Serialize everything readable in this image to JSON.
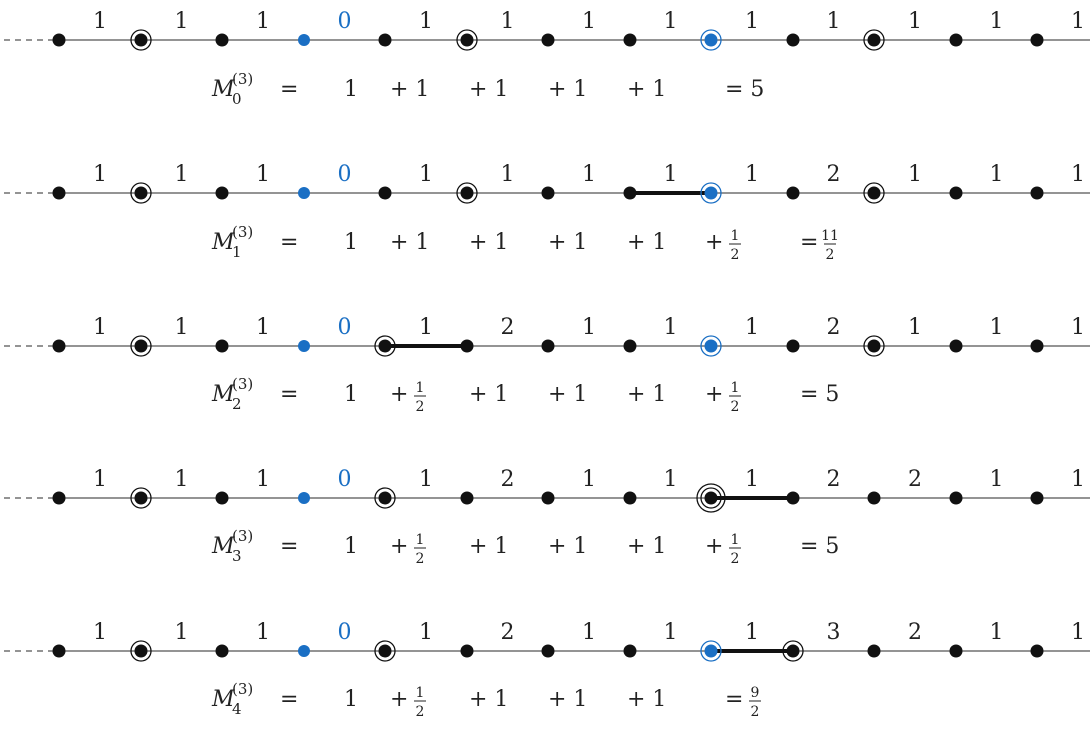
{
  "colors": {
    "blue": "#1a6fc4",
    "black": "#111111",
    "line": "#555555"
  },
  "rows": [
    {
      "labels": [
        "1",
        "1",
        "1",
        "0",
        "1",
        "1",
        "1",
        "1",
        "1",
        "1",
        "1",
        "1",
        "1"
      ],
      "circled": [
        1,
        5,
        8,
        10
      ],
      "thick": [],
      "blue_circled": [
        8
      ],
      "equation": {
        "var": "M",
        "sup": "(3)",
        "sub": "0",
        "terms": [
          "1",
          "+ 1",
          "+ 1",
          "+ 1",
          "+ 1"
        ],
        "result": "= 5"
      }
    },
    {
      "labels": [
        "1",
        "1",
        "1",
        "0",
        "1",
        "1",
        "1",
        "1",
        "1",
        "2",
        "1",
        "1",
        "1"
      ],
      "circled": [
        1,
        5,
        10
      ],
      "thick": [
        [
          7,
          8
        ]
      ],
      "blue_circled": [
        8
      ],
      "equation": {
        "var": "M",
        "sup": "(3)",
        "sub": "1",
        "terms": [
          "1",
          "+ 1",
          "+ 1",
          "+ 1",
          "+ 1",
          "+ 1/2"
        ],
        "result": "= 11/2"
      }
    },
    {
      "labels": [
        "1",
        "1",
        "1",
        "0",
        "1",
        "2",
        "1",
        "1",
        "1",
        "2",
        "1",
        "1",
        "1"
      ],
      "circled": [
        1,
        4,
        10
      ],
      "thick": [
        [
          4,
          5
        ]
      ],
      "blue_circled": [
        8
      ],
      "equation": {
        "var": "M",
        "sup": "(3)",
        "sub": "2",
        "terms": [
          "1",
          "+ 1/2",
          "+ 1",
          "+ 1",
          "+ 1",
          "+ 1/2"
        ],
        "result": "= 5"
      }
    },
    {
      "labels": [
        "1",
        "1",
        "1",
        "0",
        "1",
        "2",
        "1",
        "1",
        "1",
        "2",
        "2",
        "1",
        "1"
      ],
      "circled": [
        1,
        4
      ],
      "double_circled": [
        8
      ],
      "thick": [
        [
          8,
          9
        ]
      ],
      "blue_circled": [],
      "equation": {
        "var": "M",
        "sup": "(3)",
        "sub": "3",
        "terms": [
          "1",
          "+ 1/2",
          "+ 1",
          "+ 1",
          "+ 1",
          "+ 1/2"
        ],
        "result": "= 5"
      }
    },
    {
      "labels": [
        "1",
        "1",
        "1",
        "0",
        "1",
        "2",
        "1",
        "1",
        "1",
        "3",
        "2",
        "1",
        "1"
      ],
      "circled": [
        1,
        4,
        9
      ],
      "thick": [
        [
          8,
          9
        ]
      ],
      "blue_circled": [
        8
      ],
      "equation": {
        "var": "M",
        "sup": "(3)",
        "sub": "4",
        "terms": [
          "1",
          "+ 1/2",
          "+ 1",
          "+ 1",
          "+ 1"
        ],
        "result": "= 9/2"
      }
    }
  ]
}
